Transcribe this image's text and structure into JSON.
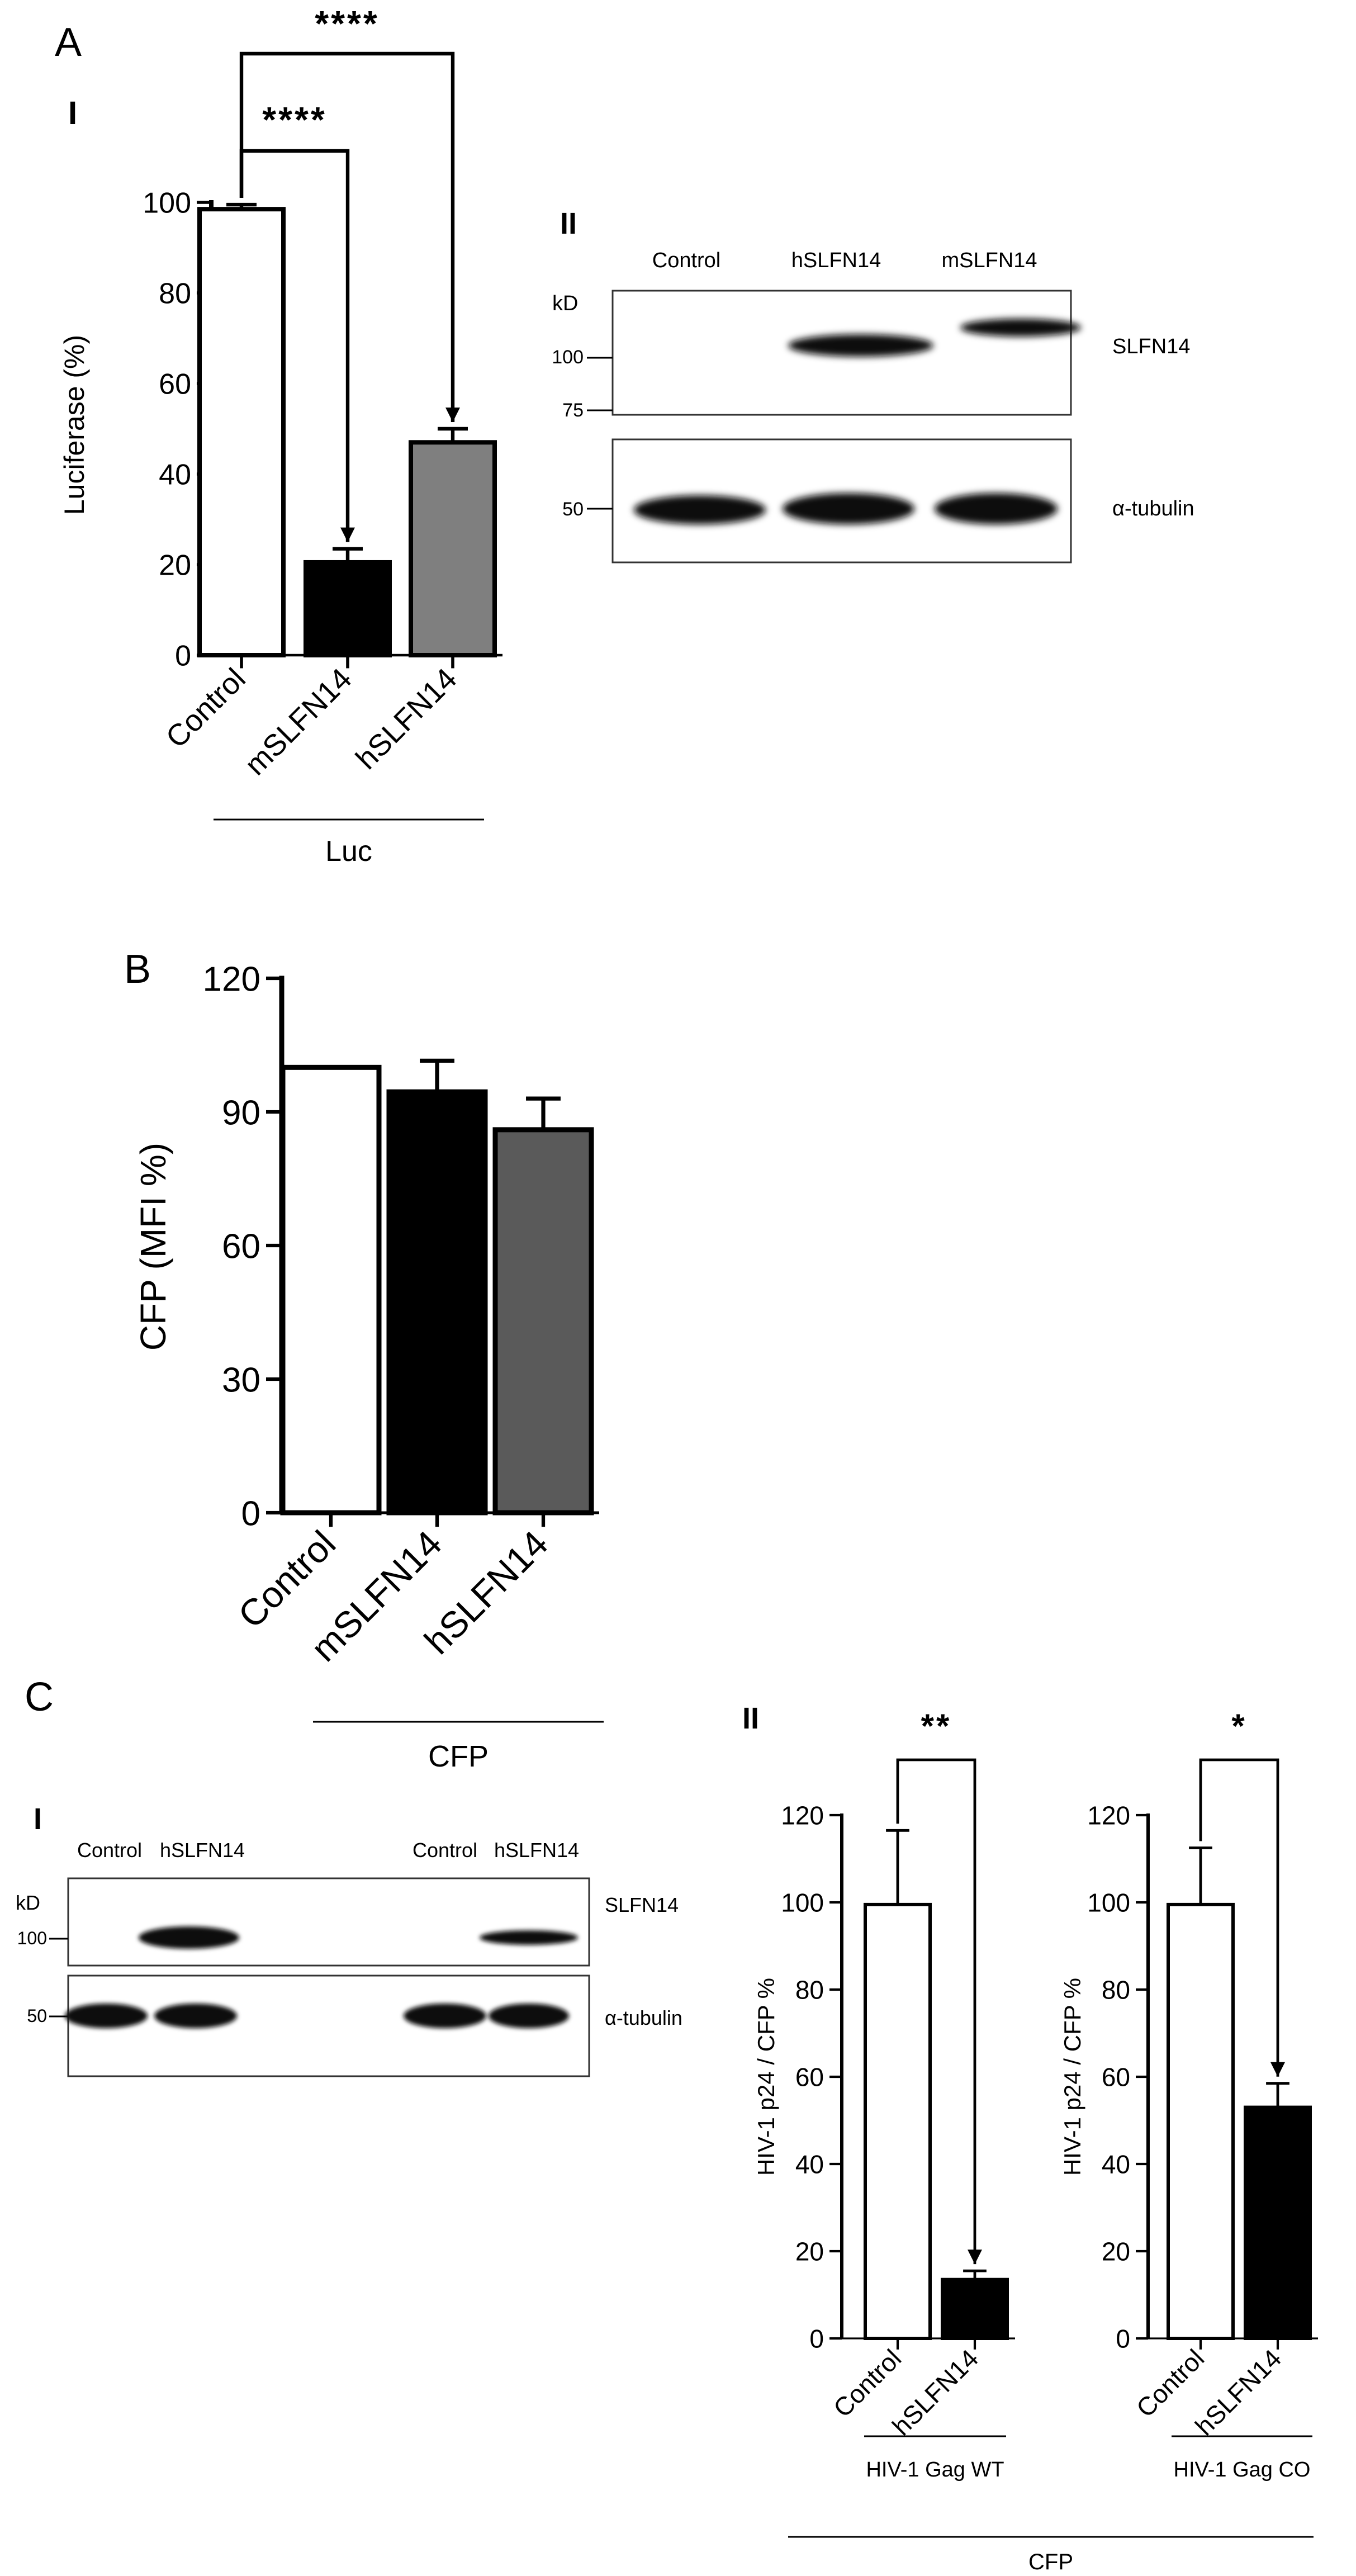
{
  "panels": {
    "A": "A",
    "B": "B",
    "C": "C",
    "A_I": "I",
    "A_II": "II",
    "C_I": "I",
    "C_II": "II"
  },
  "blot_a": {
    "lanes": [
      "Control",
      "hSLFN14",
      "mSLFN14"
    ],
    "kd_label": "kD",
    "markers_top": [
      "100",
      "75"
    ],
    "marker_bottom": "50",
    "band_top": "SLFN14",
    "band_bottom": "α-tubulin"
  },
  "blot_c": {
    "lanes": [
      "Control",
      "hSLFN14",
      "Control",
      "hSLFN14"
    ],
    "kd_label": "kD",
    "marker_top": "100",
    "marker_bottom": "50",
    "band_top": "SLFN14",
    "band_bottom": "α-tubulin"
  },
  "chart_data": [
    {
      "id": "A-I",
      "type": "bar",
      "categories": [
        "Control",
        "mSLFN14",
        "hSLFN14"
      ],
      "values": [
        98.5,
        20.5,
        47
      ],
      "errors": [
        1,
        3,
        3
      ],
      "colors": [
        "#ffffff",
        "#000000",
        "#7f7f7f"
      ],
      "ylabel": "Luciferase (%)",
      "ylim": [
        0,
        100
      ],
      "yticks": [
        "0",
        "20",
        "40",
        "60",
        "80",
        "100"
      ],
      "group_label": "Luc",
      "significance": [
        {
          "from": "Control",
          "to": "hSLFN14",
          "label": "****"
        },
        {
          "from": "Control",
          "to": "mSLFN14",
          "label": "****"
        }
      ]
    },
    {
      "id": "B",
      "type": "bar",
      "categories": [
        "Control",
        "mSLFN14",
        "hSLFN14"
      ],
      "values": [
        100,
        94.5,
        86
      ],
      "errors": [
        0,
        7,
        7
      ],
      "colors": [
        "#ffffff",
        "#000000",
        "#5a5a5a"
      ],
      "ylabel": "CFP (MFI %)",
      "ylim": [
        0,
        120
      ],
      "yticks": [
        "0",
        "30",
        "60",
        "90",
        "120"
      ],
      "group_label": "CFP"
    },
    {
      "id": "C-II-WT",
      "type": "bar",
      "categories": [
        "Control",
        "hSLFN14"
      ],
      "values": [
        99.5,
        13.5
      ],
      "errors": [
        17,
        2
      ],
      "colors": [
        "#ffffff",
        "#000000"
      ],
      "ylabel": "HIV-1 p24 / CFP %",
      "ylim": [
        0,
        120
      ],
      "yticks": [
        "0",
        "20",
        "40",
        "60",
        "80",
        "100",
        "120"
      ],
      "group_label": "HIV-1 Gag WT",
      "significance": [
        {
          "from": "Control",
          "to": "hSLFN14",
          "label": "**"
        }
      ]
    },
    {
      "id": "C-II-CO",
      "type": "bar",
      "categories": [
        "Control",
        "hSLFN14"
      ],
      "values": [
        99.5,
        53
      ],
      "errors": [
        13,
        5.5
      ],
      "colors": [
        "#ffffff",
        "#000000"
      ],
      "ylabel": "HIV-1 p24 / CFP %",
      "ylim": [
        0,
        120
      ],
      "yticks": [
        "0",
        "20",
        "40",
        "60",
        "80",
        "100",
        "120"
      ],
      "group_label": "HIV-1 Gag CO",
      "significance": [
        {
          "from": "Control",
          "to": "hSLFN14",
          "label": "*"
        }
      ]
    }
  ],
  "c_shared_group_label": "CFP"
}
